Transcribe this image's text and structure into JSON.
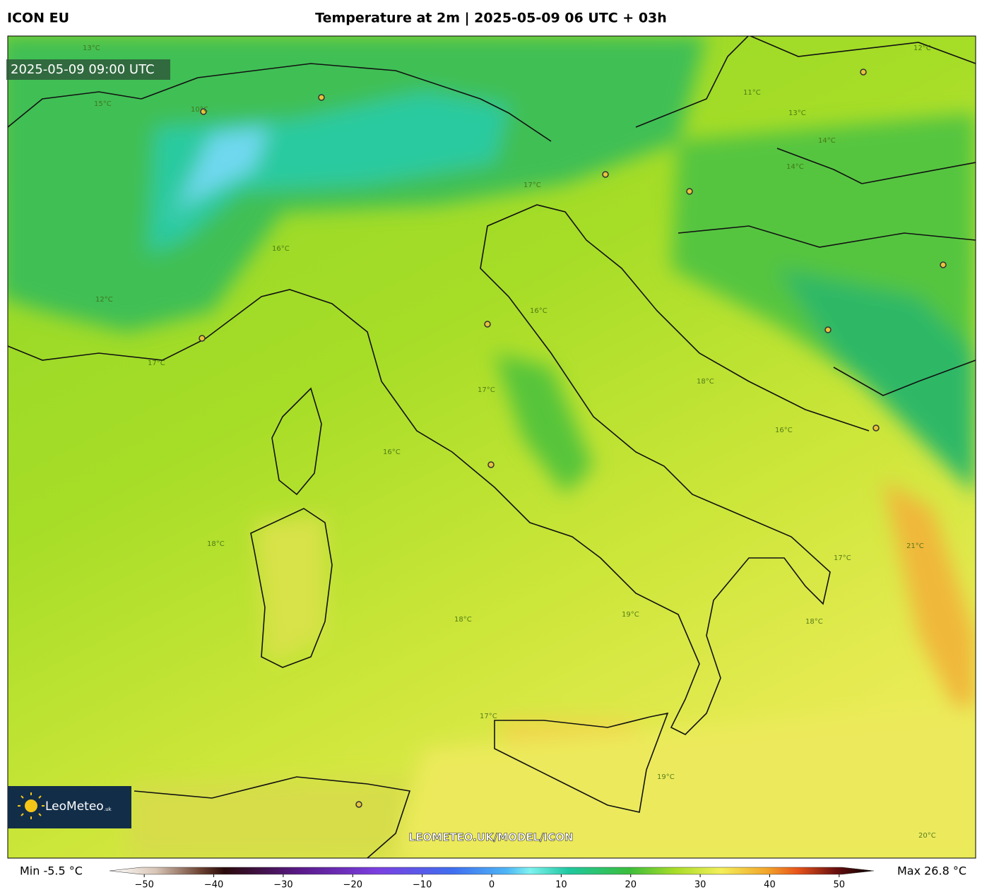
{
  "header": {
    "model": "ICON EU",
    "title": "Temperature at 2m | 2025-05-09 06 UTC + 03h"
  },
  "map": {
    "valid_time": "2025-05-09 09:00 UTC",
    "watermark": "LEOMETEO.UK/MODEL/ICON",
    "logo": "LeoMeteo",
    "logo_suffix": ".uk",
    "contour_labels": [
      "13°C",
      "12°C",
      "15°C",
      "10°C",
      "11°C",
      "14°C",
      "14°C",
      "13°C",
      "17°C",
      "16°C",
      "12°C",
      "17°C",
      "16°C",
      "17°C",
      "16°C",
      "18°C",
      "18°C",
      "16°C",
      "17°C",
      "18°C",
      "19°C",
      "18°C",
      "17°C",
      "19°C",
      "20°C",
      "21°C"
    ]
  },
  "colorbar": {
    "min_label": "Min -5.5 °C",
    "max_label": "Max 26.8 °C",
    "range": [
      -55,
      55
    ],
    "ticks": [
      {
        "value": -50,
        "label": "−50"
      },
      {
        "value": -40,
        "label": "−40"
      },
      {
        "value": -30,
        "label": "−30"
      },
      {
        "value": -20,
        "label": "−20"
      },
      {
        "value": -10,
        "label": "−10"
      },
      0,
      10,
      20,
      30,
      40,
      50
    ]
  }
}
